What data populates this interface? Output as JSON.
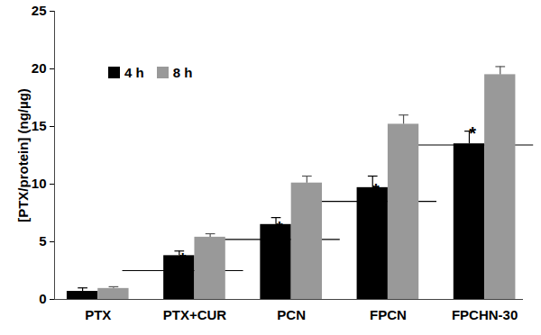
{
  "chart_data": {
    "type": "bar",
    "categories": [
      "PTX",
      "PTX+CUR",
      "PCN",
      "FPCN",
      "FPCHN-30"
    ],
    "series": [
      {
        "name": "4 h",
        "color": "#000000",
        "values": [
          0.7,
          3.8,
          6.5,
          9.7,
          13.5
        ],
        "errors": [
          0.3,
          0.4,
          0.6,
          1.0,
          1.1
        ]
      },
      {
        "name": "8 h",
        "color": "#999999",
        "values": [
          0.95,
          5.4,
          10.1,
          15.2,
          19.5
        ],
        "errors": [
          0.15,
          0.3,
          0.6,
          0.8,
          0.7
        ]
      }
    ],
    "ylabel": "[PTX/protein] (ng/µg)",
    "ylim": [
      0,
      25
    ],
    "yticks": [
      0,
      5,
      10,
      15,
      20,
      25
    ],
    "grid": false,
    "legend": "upper left",
    "annotations": [
      {
        "from": "PTX",
        "to": "PTX+CUR",
        "y": 2.5,
        "text": "*"
      },
      {
        "from": "PTX+CUR",
        "to": "PCN",
        "y": 5.2,
        "text": "*"
      },
      {
        "from": "PCN",
        "to": "FPCN",
        "y": 8.5,
        "text": "*"
      },
      {
        "from": "FPCN",
        "to": "FPCHN-30",
        "y": 13.4,
        "text": "*"
      }
    ]
  }
}
